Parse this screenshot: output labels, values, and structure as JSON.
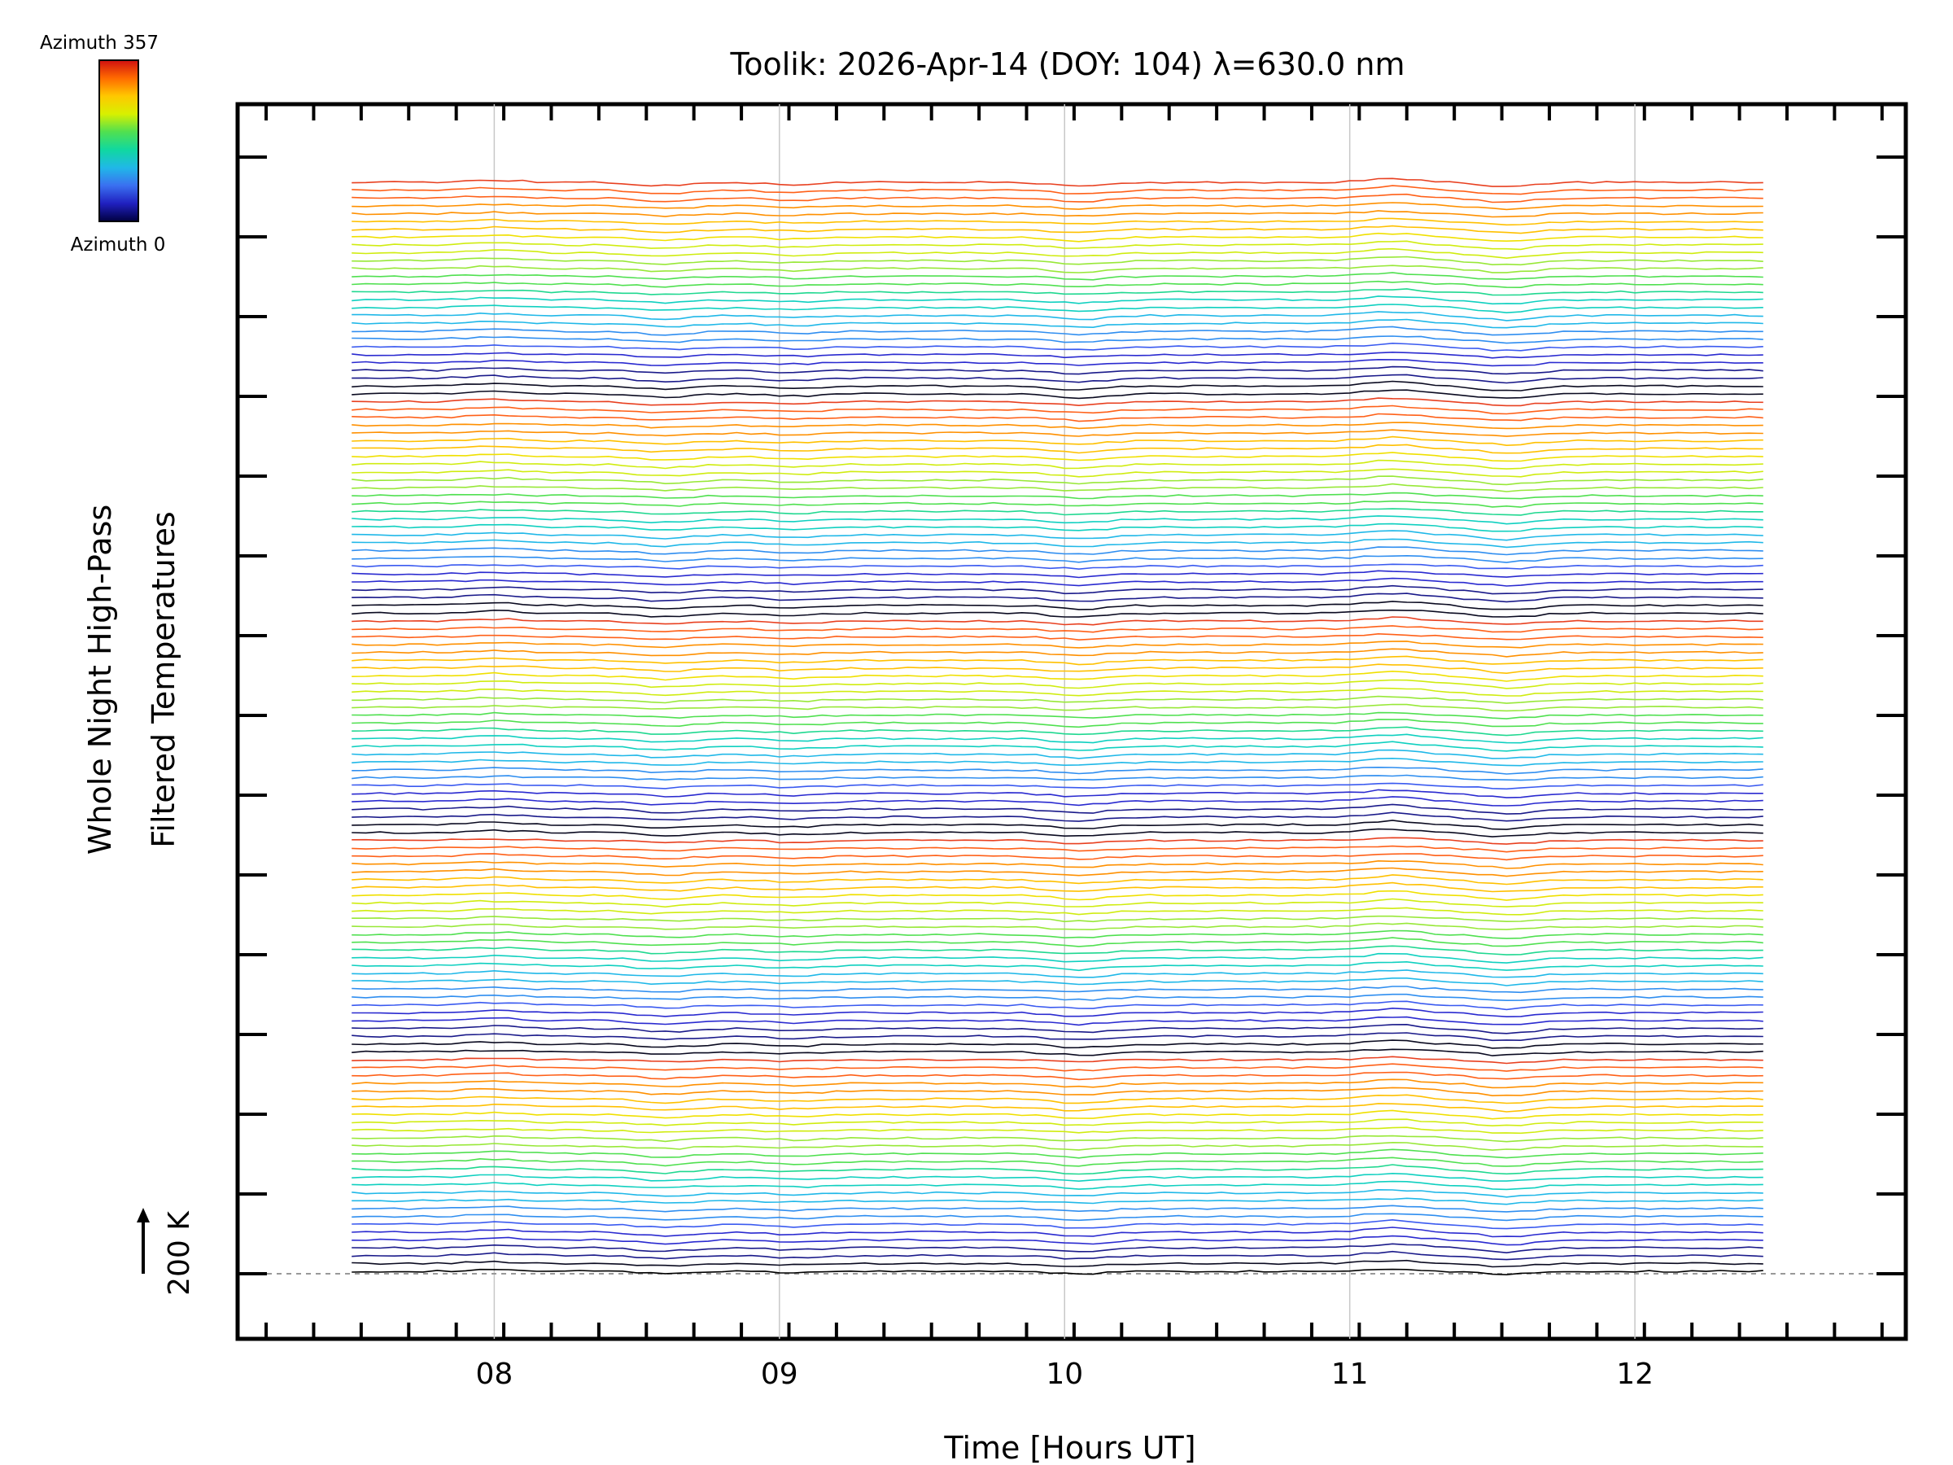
{
  "chart_data": {
    "type": "line",
    "title": "Toolik: 2026-Apr-14 (DOY: 104) λ=630.0 nm",
    "xlabel": "Time [Hours UT]",
    "ylabel_line1": "Whole Night High-Pass",
    "ylabel_line2": "Filtered Temperatures",
    "xlim": [
      7.1,
      12.95
    ],
    "x_ticks": [
      8,
      9,
      10,
      11,
      12
    ],
    "x_tick_labels": [
      "08",
      "09",
      "10",
      "11",
      "12"
    ],
    "x_range_of_data": [
      7.5,
      12.45
    ],
    "scale_bar_label": "200 K",
    "colorbar": {
      "top_label": "Azimuth 357",
      "bottom_label": "Azimuth 0",
      "colors": [
        "#d01010",
        "#ff6a00",
        "#ffc800",
        "#d8f000",
        "#50e050",
        "#10d8a0",
        "#20b8e8",
        "#3a70f0",
        "#2020c0",
        "#000040"
      ]
    },
    "series_count": 140,
    "series_note": "Stacked high-pass filtered temperature traces, one per azimuth (0–357°), offset vertically; bottom trace azimuth 0 (black), colours cycle blue→cyan→green→yellow→orange→red through the azimuth sequence",
    "common_perturbations": [
      {
        "time": 8.0,
        "delta_k": 8
      },
      {
        "time": 8.6,
        "delta_k": -12
      },
      {
        "time": 9.05,
        "delta_k": -8
      },
      {
        "time": 10.05,
        "delta_k": -14
      },
      {
        "time": 11.15,
        "delta_k": 14
      },
      {
        "time": 11.55,
        "delta_k": -16
      }
    ]
  }
}
